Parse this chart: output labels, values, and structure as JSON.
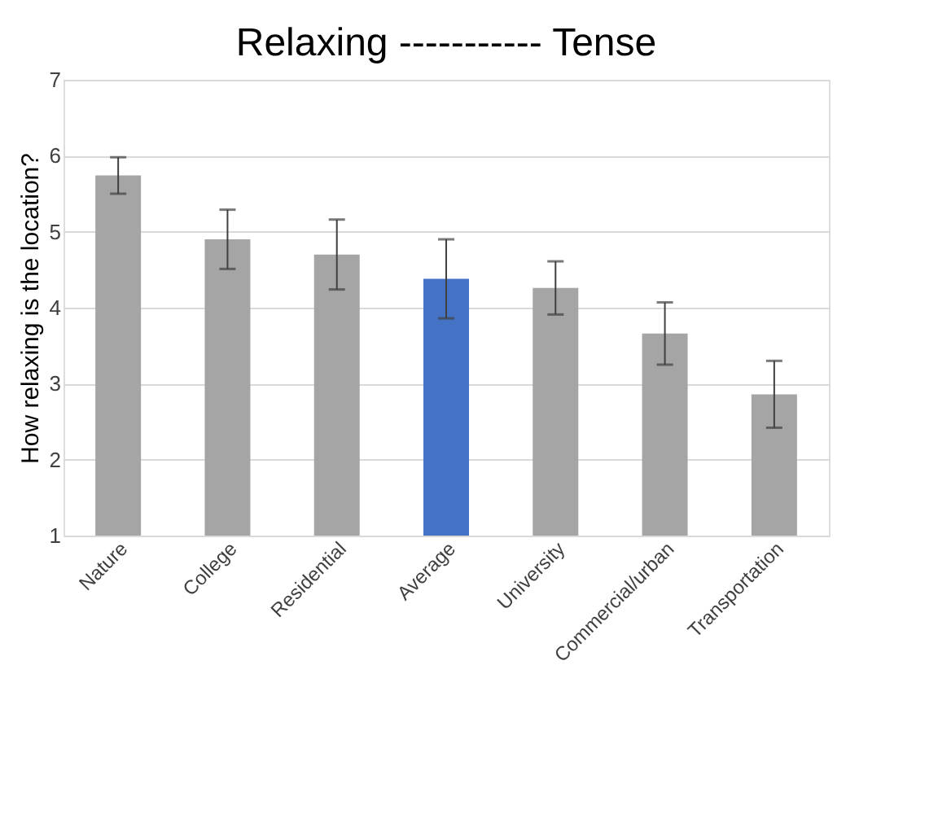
{
  "chart_data": {
    "type": "bar",
    "title": "Relaxing ----------- Tense",
    "ylabel": "How relaxing is the location?",
    "categories": [
      "Nature",
      "College",
      "Residential",
      "Average",
      "University",
      "Commercial/urban",
      "Transportation"
    ],
    "values": [
      5.74,
      4.9,
      4.7,
      4.38,
      4.26,
      3.66,
      2.86
    ],
    "errors": [
      0.24,
      0.39,
      0.46,
      0.52,
      0.35,
      0.41,
      0.44
    ],
    "colors": [
      "#a5a5a5",
      "#a5a5a5",
      "#a5a5a5",
      "#4472c4",
      "#a5a5a5",
      "#a5a5a5",
      "#a5a5a5"
    ],
    "ylim": [
      1,
      7
    ],
    "yticks": [
      1,
      2,
      3,
      4,
      5,
      6,
      7
    ],
    "grid": "y"
  }
}
